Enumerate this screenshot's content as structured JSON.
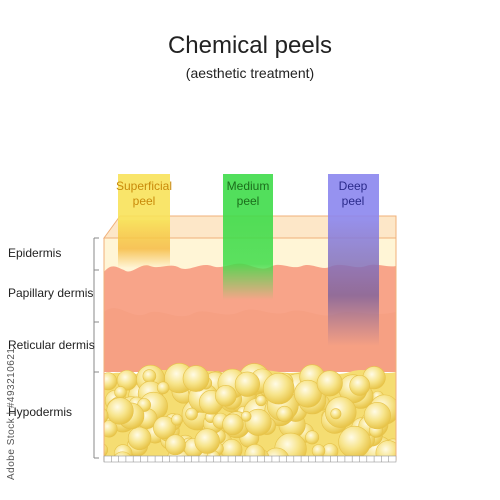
{
  "title": "Chemical peels",
  "subtitle": "(aesthetic treatment)",
  "layers": {
    "epidermis": "Epidermis",
    "papillary": "Papillary dermis",
    "reticular": "Reticular dermis",
    "hypodermis": "Hypodermis"
  },
  "peels": {
    "superficial": {
      "line1": "Superficial",
      "line2": "peel",
      "color": "#f8e25a",
      "text_color": "#c98a0a"
    },
    "medium": {
      "line1": "Medium",
      "line2": "peel",
      "color": "#3fdc4a",
      "text_color": "#1b6d1b"
    },
    "deep": {
      "line1": "Deep",
      "line2": "peel",
      "color": "#8b86ee",
      "text_color": "#2a2a8a"
    }
  },
  "watermark": "Adobe Stock | #493210621",
  "colors": {
    "epidermis": "#fff5d6",
    "dermis": "#f8a489",
    "reticular": "#f7a084",
    "fat": "#f5dd72"
  }
}
